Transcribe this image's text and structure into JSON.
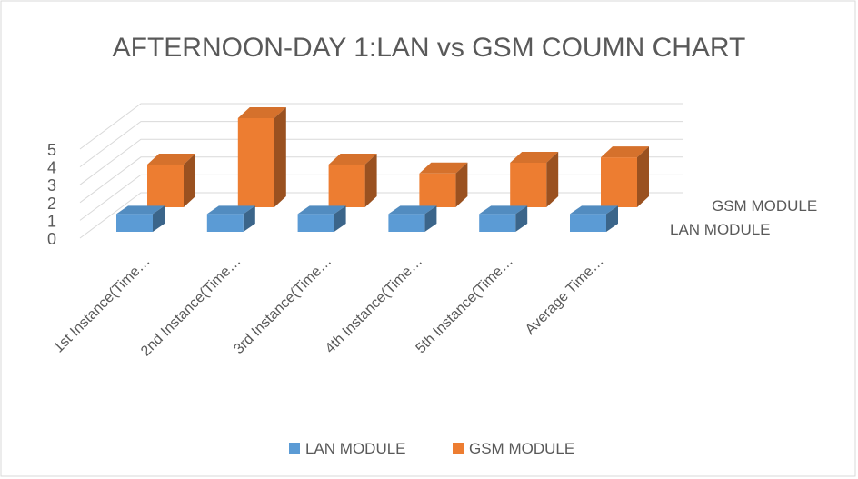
{
  "chart_data": {
    "type": "bar3d",
    "title": "AFTERNOON-DAY 1:LAN vs GSM COUMN CHART",
    "categories": [
      "1st Instance(Time…",
      "2nd Instance(Time…",
      "3rd Instance(Time…",
      "4th Instance(Time…",
      "5th Instance(Time…",
      "Average Time…"
    ],
    "series": [
      {
        "name": "LAN MODULE",
        "color": "#5b9bd5",
        "values": [
          1,
          1,
          1,
          1,
          1,
          1
        ]
      },
      {
        "name": "GSM MODULE",
        "color": "#ed7d31",
        "values": [
          2.4,
          5,
          2.4,
          1.9,
          2.5,
          2.8
        ]
      }
    ],
    "ylim": [
      0,
      5
    ],
    "yticks": [
      0,
      1,
      2,
      3,
      4,
      5
    ],
    "grid": true,
    "legend": "bottom"
  }
}
